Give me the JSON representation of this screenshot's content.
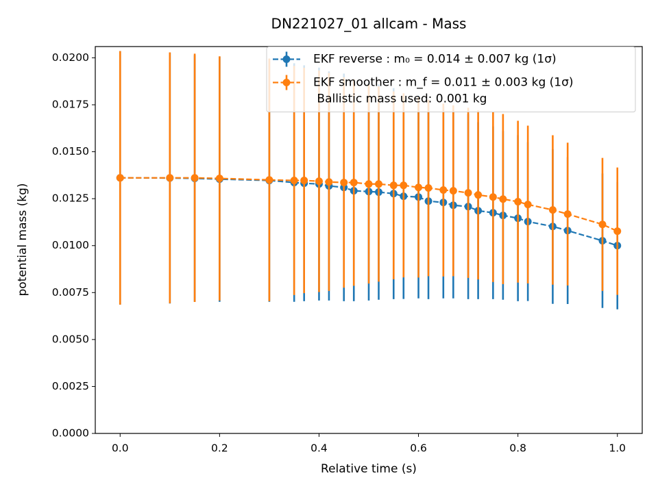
{
  "chart_data": {
    "type": "errorbar",
    "title": "DN221027_01 allcam - Mass",
    "x_label": "Relative time (s)",
    "y_label": "potential mass (kg)",
    "x": [
      0.0,
      0.1,
      0.15,
      0.2,
      0.3,
      0.35,
      0.37,
      0.4,
      0.42,
      0.45,
      0.47,
      0.5,
      0.52,
      0.55,
      0.57,
      0.6,
      0.62,
      0.65,
      0.67,
      0.7,
      0.72,
      0.75,
      0.77,
      0.8,
      0.82,
      0.87,
      0.9,
      0.97,
      1.0
    ],
    "series": [
      {
        "name": "EKF reverse : m₀ =  0.014 ± 0.007 kg (1σ)",
        "color": "#1f77b4",
        "values": [
          0.01361,
          0.0136,
          0.01358,
          0.01354,
          0.01347,
          0.01336,
          0.01332,
          0.01328,
          0.01318,
          0.0131,
          0.01292,
          0.01288,
          0.01285,
          0.01277,
          0.01263,
          0.01259,
          0.01237,
          0.0123,
          0.01215,
          0.01208,
          0.01186,
          0.01175,
          0.01161,
          0.01146,
          0.01128,
          0.01102,
          0.0108,
          0.01026,
          0.01
        ],
        "errors": [
          0.00675,
          0.00668,
          0.00657,
          0.00653,
          0.00646,
          0.00635,
          0.00628,
          0.0062,
          0.0061,
          0.00606,
          0.00588,
          0.0058,
          0.00573,
          0.00562,
          0.00547,
          0.0054,
          0.00522,
          0.00511,
          0.00496,
          0.00493,
          0.00471,
          0.0046,
          0.00449,
          0.00442,
          0.00423,
          0.00412,
          0.00391,
          0.00358,
          0.00339
        ]
      },
      {
        "name": "EKF smoother : m_f =  0.011 ± 0.003 kg (1σ)",
        "color": "#ff7f0e",
        "values": [
          0.01361,
          0.01361,
          0.01361,
          0.01358,
          0.0135,
          0.01347,
          0.01347,
          0.01343,
          0.01339,
          0.01336,
          0.01336,
          0.01328,
          0.01328,
          0.01321,
          0.01321,
          0.0131,
          0.01307,
          0.01296,
          0.01292,
          0.01281,
          0.0127,
          0.01259,
          0.01248,
          0.01234,
          0.01219,
          0.0119,
          0.01168,
          0.01113,
          0.01077
        ],
        "errors": [
          0.00675,
          0.00668,
          0.00661,
          0.0065,
          0.00646,
          0.0061,
          0.006,
          0.0059,
          0.0058,
          0.0056,
          0.0055,
          0.0053,
          0.0052,
          0.005,
          0.0049,
          0.0048,
          0.0047,
          0.0046,
          0.00455,
          0.00453,
          0.0045,
          0.00453,
          0.00453,
          0.00431,
          0.0042,
          0.00398,
          0.0038,
          0.00354,
          0.00339
        ]
      }
    ],
    "legend_note": " Ballistic mass used: 0.001 kg",
    "legend_position": "upper right",
    "xlim": [
      -0.05,
      1.05
    ],
    "xticks": [
      {
        "value": 0,
        "label": "0.0"
      },
      0.2,
      0.4,
      0.6,
      0.8,
      {
        "value": 1,
        "label": "1.0"
      }
    ],
    "ylim": [
      0,
      0.0206
    ],
    "yticks": [
      {
        "value": 0,
        "label": "0.0000"
      },
      {
        "value": 0.0025,
        "label": "0.0025"
      },
      {
        "value": 0.005,
        "label": "0.0050"
      },
      {
        "value": 0.0075,
        "label": "0.0075"
      },
      {
        "value": 0.01,
        "label": "0.0100"
      },
      {
        "value": 0.0125,
        "label": "0.0125"
      },
      {
        "value": 0.015,
        "label": "0.0150"
      },
      {
        "value": 0.0175,
        "label": "0.0175"
      },
      {
        "value": 0.02,
        "label": "0.0200"
      }
    ]
  }
}
